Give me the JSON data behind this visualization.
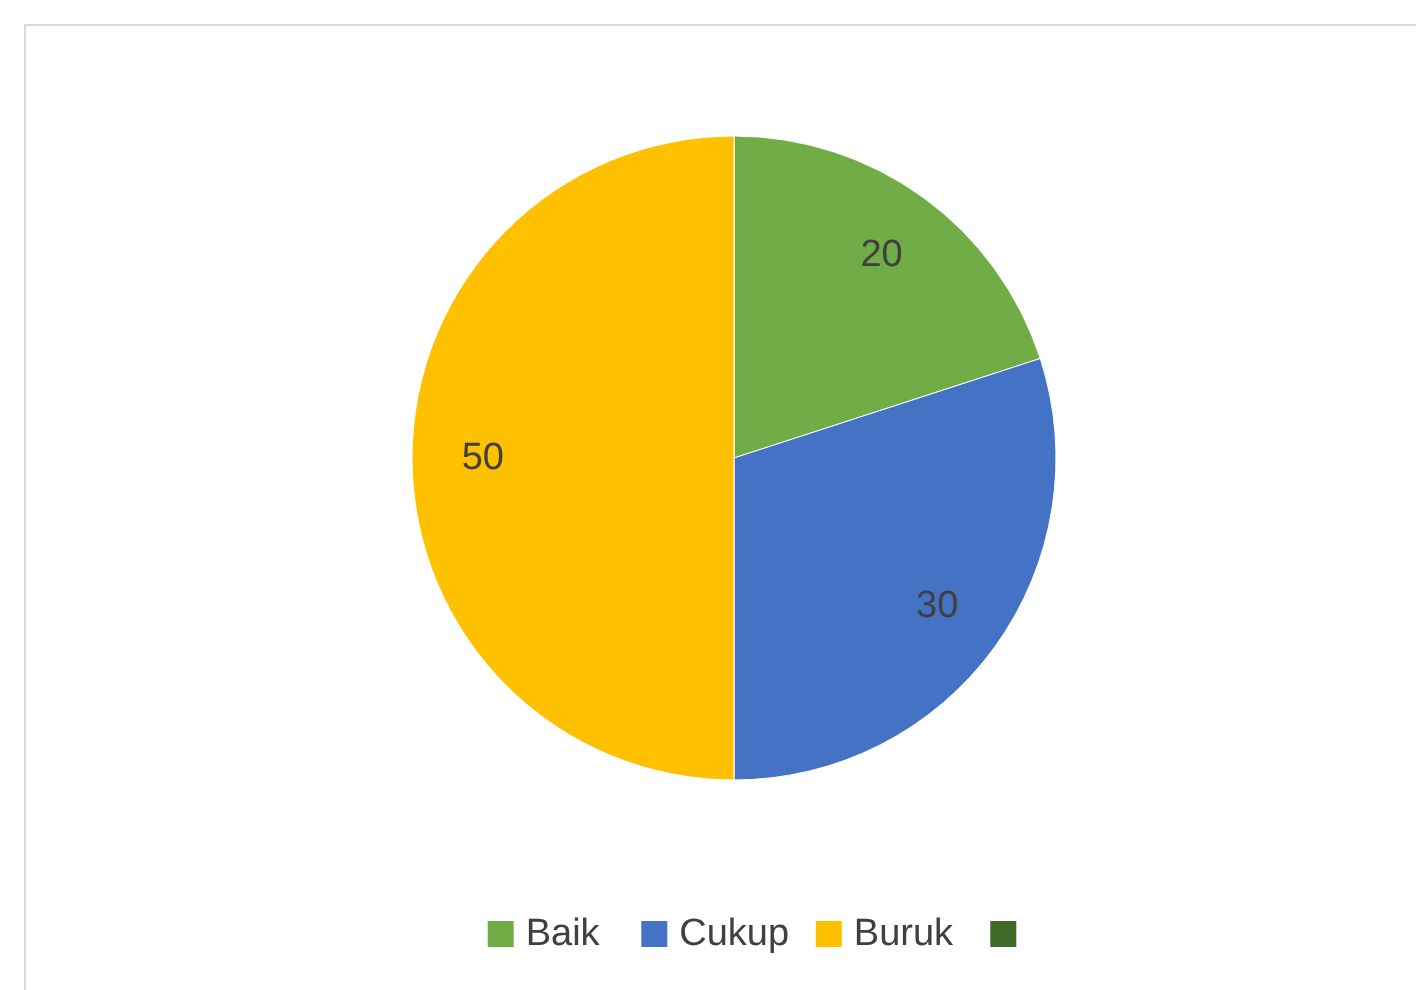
{
  "chart_data": {
    "type": "pie",
    "categories": [
      "Baik",
      "Cukup",
      "Buruk",
      null
    ],
    "values": [
      20,
      30,
      50,
      0
    ],
    "colors": [
      "#70ad47",
      "#4472c4",
      "#ffc000",
      "#3e6b27"
    ],
    "data_labels": true,
    "legend": "bottom"
  }
}
